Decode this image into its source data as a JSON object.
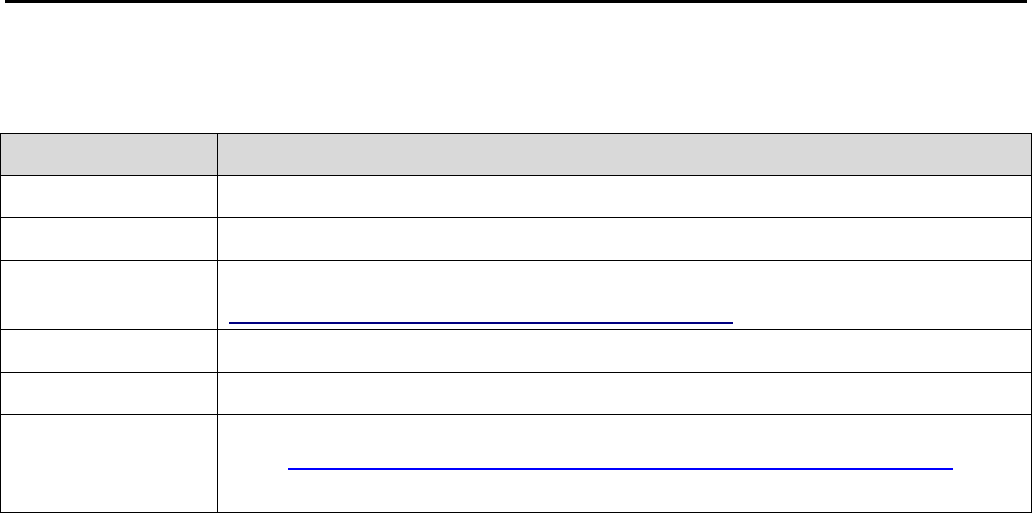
{
  "colors": {
    "header_background": "#d9d9d9",
    "border": "#000000",
    "link_visited": "#000080",
    "link": "#0000ff"
  },
  "table": {
    "header": [
      "",
      ""
    ],
    "rows": [
      [
        "",
        ""
      ],
      [
        "",
        ""
      ],
      [
        "",
        ""
      ],
      [
        "",
        ""
      ],
      [
        "",
        ""
      ],
      [
        "",
        ""
      ]
    ]
  },
  "links": [
    "",
    ""
  ]
}
